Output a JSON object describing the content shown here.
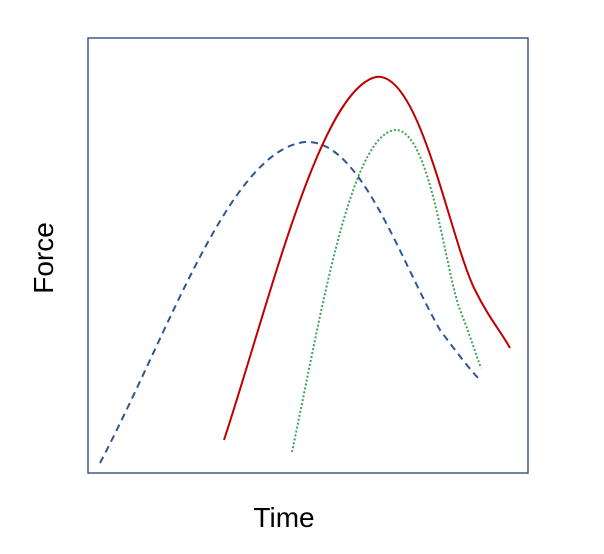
{
  "axes": {
    "x_label": "Time",
    "y_label": "Force"
  }
}
